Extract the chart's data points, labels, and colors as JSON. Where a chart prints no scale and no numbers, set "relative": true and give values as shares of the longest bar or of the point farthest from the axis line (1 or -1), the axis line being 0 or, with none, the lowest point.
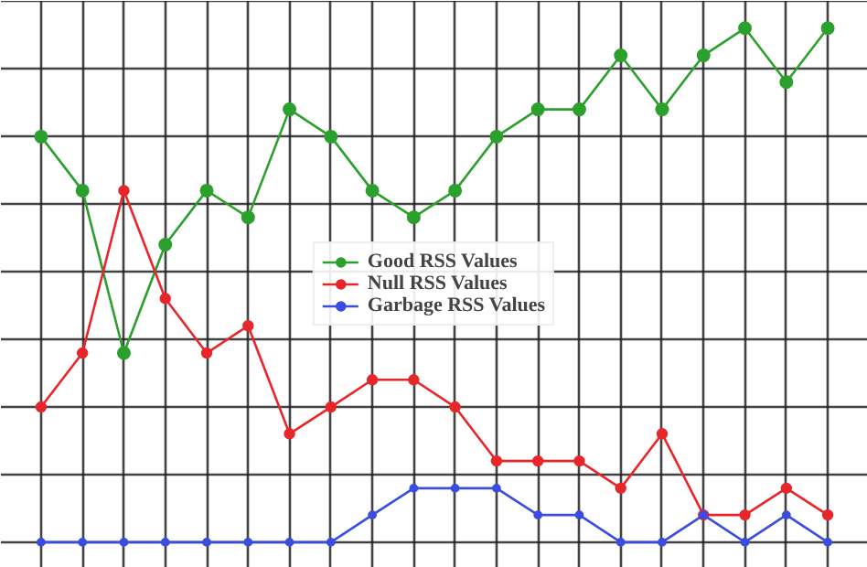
{
  "chart_data": {
    "type": "line",
    "relative": true,
    "categories": [
      null,
      null,
      null,
      null,
      null,
      null,
      null,
      null,
      null,
      null,
      null,
      null,
      null,
      null,
      null,
      null,
      null,
      null,
      null,
      null
    ],
    "series": [
      {
        "name": "Good RSS Values",
        "color": "#2ca02c",
        "values": [
          0.789,
          0.684,
          0.368,
          0.579,
          0.684,
          0.632,
          0.842,
          0.789,
          0.684,
          0.632,
          0.684,
          0.789,
          0.842,
          0.842,
          0.947,
          0.842,
          0.947,
          1,
          0.895,
          1
        ]
      },
      {
        "name": "Null RSS Values",
        "color": "#e8262a",
        "values": [
          0.263,
          0.368,
          0.684,
          0.474,
          0.368,
          0.421,
          0.211,
          0.263,
          0.316,
          0.316,
          0.263,
          0.158,
          0.158,
          0.158,
          0.105,
          0.211,
          0.053,
          0.053,
          0.105,
          0.053
        ]
      },
      {
        "name": "Garbage RSS Values",
        "color": "#3a4de0",
        "values": [
          0,
          0,
          0,
          0,
          0,
          0,
          0,
          0,
          0.053,
          0.105,
          0.105,
          0.105,
          0.053,
          0.053,
          0,
          0,
          0.053,
          0,
          0.053,
          0
        ]
      }
    ],
    "grid": true,
    "legend": "center",
    "marker": "circle",
    "line_style": "solid",
    "tick_labels": false
  }
}
